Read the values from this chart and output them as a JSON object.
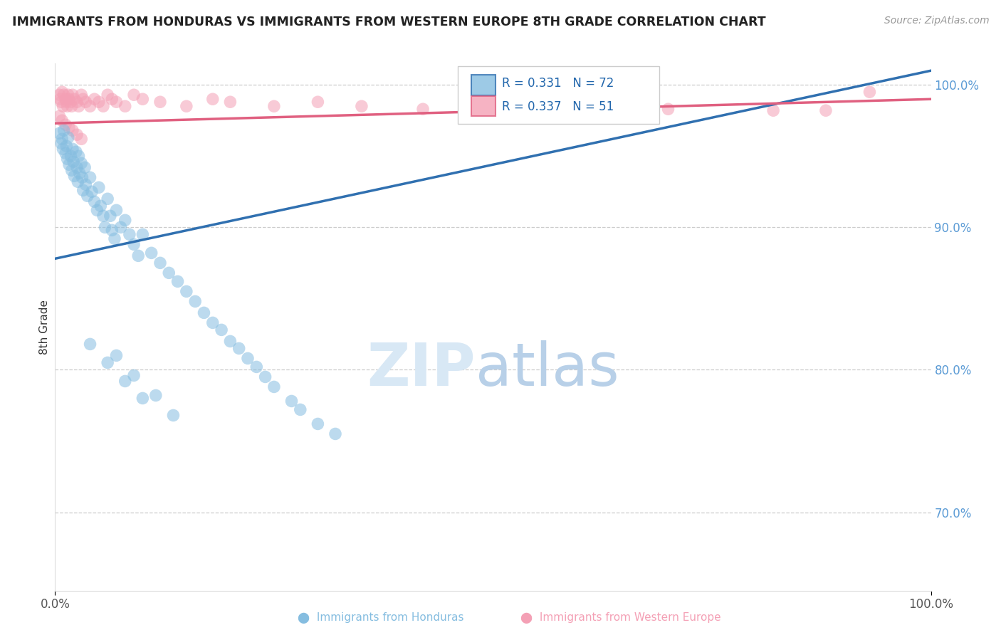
{
  "title": "IMMIGRANTS FROM HONDURAS VS IMMIGRANTS FROM WESTERN EUROPE 8TH GRADE CORRELATION CHART",
  "source": "Source: ZipAtlas.com",
  "ylabel": "8th Grade",
  "xlim": [
    0.0,
    1.0
  ],
  "ylim": [
    0.645,
    1.015
  ],
  "y_ticks": [
    0.7,
    0.8,
    0.9,
    1.0
  ],
  "y_tick_labels": [
    "70.0%",
    "80.0%",
    "90.0%",
    "100.0%"
  ],
  "x_tick_labels": [
    "0.0%",
    "100.0%"
  ],
  "x_ticks": [
    0.0,
    1.0
  ],
  "legend_blue_label": "Immigrants from Honduras",
  "legend_pink_label": "Immigrants from Western Europe",
  "R_blue": 0.331,
  "N_blue": 72,
  "R_pink": 0.337,
  "N_pink": 51,
  "blue_color": "#85bde0",
  "pink_color": "#f4a0b5",
  "blue_line_color": "#3070b0",
  "pink_line_color": "#e06080",
  "background_color": "#ffffff",
  "blue_line_x0": 0.0,
  "blue_line_y0": 0.878,
  "blue_line_x1": 1.0,
  "blue_line_y1": 1.01,
  "pink_line_x0": 0.0,
  "pink_line_y0": 0.973,
  "pink_line_x1": 1.0,
  "pink_line_y1": 0.99,
  "blue_scatter_x": [
    0.005,
    0.007,
    0.008,
    0.009,
    0.01,
    0.012,
    0.013,
    0.014,
    0.015,
    0.016,
    0.018,
    0.019,
    0.02,
    0.021,
    0.022,
    0.024,
    0.025,
    0.026,
    0.027,
    0.028,
    0.03,
    0.031,
    0.032,
    0.034,
    0.035,
    0.037,
    0.04,
    0.042,
    0.045,
    0.048,
    0.05,
    0.052,
    0.055,
    0.057,
    0.06,
    0.063,
    0.065,
    0.068,
    0.07,
    0.075,
    0.08,
    0.085,
    0.09,
    0.095,
    0.1,
    0.11,
    0.12,
    0.13,
    0.14,
    0.15,
    0.16,
    0.17,
    0.18,
    0.19,
    0.2,
    0.21,
    0.22,
    0.23,
    0.24,
    0.25,
    0.27,
    0.28,
    0.3,
    0.32,
    0.04,
    0.06,
    0.08,
    0.1,
    0.07,
    0.09,
    0.115,
    0.135
  ],
  "blue_scatter_y": [
    0.966,
    0.959,
    0.962,
    0.955,
    0.968,
    0.952,
    0.957,
    0.948,
    0.963,
    0.944,
    0.95,
    0.94,
    0.955,
    0.946,
    0.936,
    0.953,
    0.942,
    0.932,
    0.95,
    0.938,
    0.945,
    0.935,
    0.926,
    0.942,
    0.93,
    0.922,
    0.935,
    0.925,
    0.918,
    0.912,
    0.928,
    0.915,
    0.908,
    0.9,
    0.92,
    0.908,
    0.898,
    0.892,
    0.912,
    0.9,
    0.905,
    0.895,
    0.888,
    0.88,
    0.895,
    0.882,
    0.875,
    0.868,
    0.862,
    0.855,
    0.848,
    0.84,
    0.833,
    0.828,
    0.82,
    0.815,
    0.808,
    0.802,
    0.795,
    0.788,
    0.778,
    0.772,
    0.762,
    0.755,
    0.818,
    0.805,
    0.792,
    0.78,
    0.81,
    0.796,
    0.782,
    0.768
  ],
  "pink_scatter_x": [
    0.005,
    0.006,
    0.007,
    0.008,
    0.009,
    0.01,
    0.012,
    0.013,
    0.014,
    0.015,
    0.016,
    0.018,
    0.019,
    0.02,
    0.022,
    0.025,
    0.027,
    0.03,
    0.032,
    0.035,
    0.04,
    0.045,
    0.05,
    0.055,
    0.06,
    0.065,
    0.07,
    0.08,
    0.09,
    0.1,
    0.12,
    0.15,
    0.18,
    0.2,
    0.25,
    0.3,
    0.35,
    0.42,
    0.5,
    0.6,
    0.7,
    0.82,
    0.88,
    0.93,
    0.005,
    0.008,
    0.012,
    0.016,
    0.02,
    0.025,
    0.03
  ],
  "pink_scatter_y": [
    0.993,
    0.99,
    0.988,
    0.995,
    0.985,
    0.993,
    0.99,
    0.988,
    0.985,
    0.993,
    0.99,
    0.988,
    0.985,
    0.993,
    0.99,
    0.988,
    0.985,
    0.993,
    0.99,
    0.988,
    0.985,
    0.99,
    0.988,
    0.985,
    0.993,
    0.99,
    0.988,
    0.985,
    0.993,
    0.99,
    0.988,
    0.985,
    0.99,
    0.988,
    0.985,
    0.988,
    0.985,
    0.983,
    0.982,
    0.98,
    0.983,
    0.982,
    0.982,
    0.995,
    0.978,
    0.975,
    0.972,
    0.97,
    0.968,
    0.965,
    0.962
  ]
}
